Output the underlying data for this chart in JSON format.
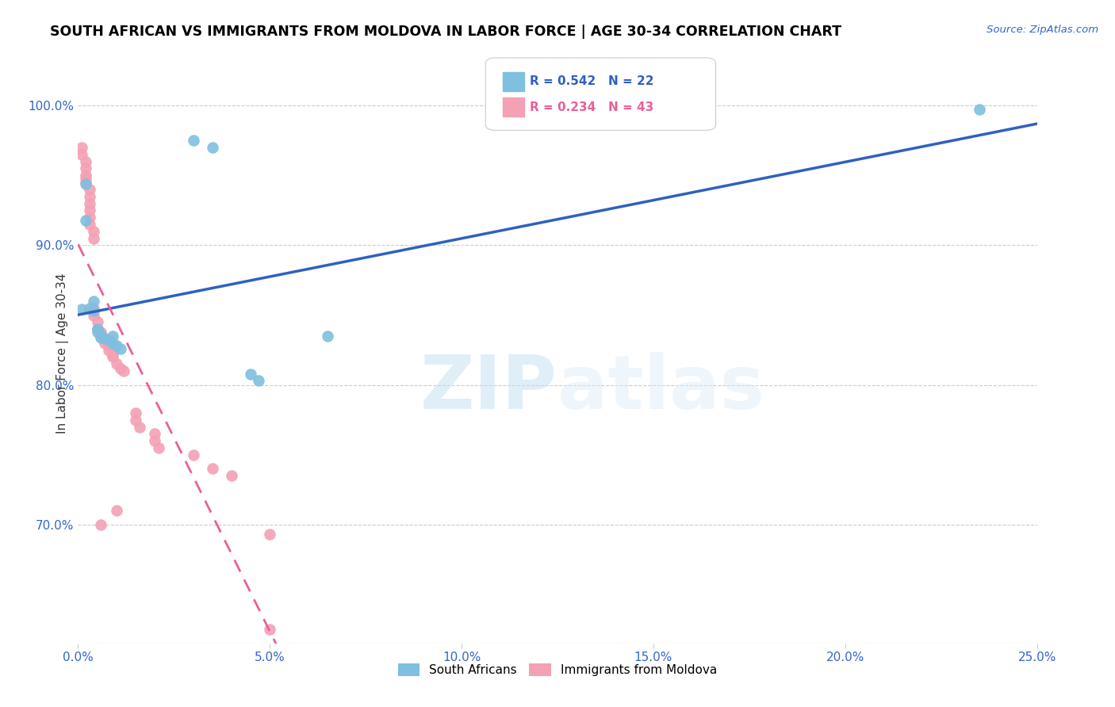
{
  "title": "SOUTH AFRICAN VS IMMIGRANTS FROM MOLDOVA IN LABOR FORCE | AGE 30-34 CORRELATION CHART",
  "source": "Source: ZipAtlas.com",
  "ylabel": "In Labor Force | Age 30-34",
  "yticks": [
    0.7,
    0.8,
    0.9,
    1.0
  ],
  "ytick_labels": [
    "70.0%",
    "80.0%",
    "90.0%",
    "100.0%"
  ],
  "xticks": [
    0.0,
    0.05,
    0.1,
    0.15,
    0.2,
    0.25
  ],
  "xtick_labels": [
    "0.0%",
    "5.0%",
    "10.0%",
    "15.0%",
    "20.0%",
    "25.0%"
  ],
  "xmin": 0.0,
  "xmax": 0.25,
  "ymin": 0.615,
  "ymax": 1.03,
  "legend_r1": "R = 0.542",
  "legend_n1": "N = 22",
  "legend_r2": "R = 0.234",
  "legend_n2": "N = 43",
  "blue_label": "South Africans",
  "pink_label": "Immigrants from Moldova",
  "blue_color": "#7fbfdf",
  "pink_color": "#f4a0b5",
  "blue_line_color": "#3060c0",
  "pink_line_color": "#e8609a",
  "watermark_zip": "ZIP",
  "watermark_atlas": "atlas",
  "blue_points": [
    [
      0.001,
      0.854
    ],
    [
      0.002,
      0.944
    ],
    [
      0.002,
      0.918
    ],
    [
      0.003,
      0.855
    ],
    [
      0.004,
      0.86
    ],
    [
      0.004,
      0.853
    ],
    [
      0.005,
      0.84
    ],
    [
      0.005,
      0.838
    ],
    [
      0.006,
      0.836
    ],
    [
      0.006,
      0.834
    ],
    [
      0.007,
      0.833
    ],
    [
      0.008,
      0.832
    ],
    [
      0.009,
      0.835
    ],
    [
      0.009,
      0.83
    ],
    [
      0.01,
      0.828
    ],
    [
      0.011,
      0.826
    ],
    [
      0.03,
      0.975
    ],
    [
      0.035,
      0.97
    ],
    [
      0.045,
      0.808
    ],
    [
      0.047,
      0.803
    ],
    [
      0.065,
      0.835
    ],
    [
      0.235,
      0.997
    ]
  ],
  "pink_points": [
    [
      0.001,
      0.97
    ],
    [
      0.001,
      0.965
    ],
    [
      0.002,
      0.96
    ],
    [
      0.002,
      0.955
    ],
    [
      0.002,
      0.95
    ],
    [
      0.002,
      0.948
    ],
    [
      0.002,
      0.945
    ],
    [
      0.003,
      0.94
    ],
    [
      0.003,
      0.935
    ],
    [
      0.003,
      0.93
    ],
    [
      0.003,
      0.925
    ],
    [
      0.003,
      0.92
    ],
    [
      0.003,
      0.915
    ],
    [
      0.004,
      0.91
    ],
    [
      0.004,
      0.905
    ],
    [
      0.004,
      0.855
    ],
    [
      0.004,
      0.85
    ],
    [
      0.005,
      0.845
    ],
    [
      0.005,
      0.84
    ],
    [
      0.006,
      0.838
    ],
    [
      0.006,
      0.835
    ],
    [
      0.007,
      0.833
    ],
    [
      0.007,
      0.83
    ],
    [
      0.008,
      0.828
    ],
    [
      0.008,
      0.825
    ],
    [
      0.009,
      0.822
    ],
    [
      0.009,
      0.82
    ],
    [
      0.01,
      0.815
    ],
    [
      0.011,
      0.812
    ],
    [
      0.012,
      0.81
    ],
    [
      0.015,
      0.78
    ],
    [
      0.015,
      0.775
    ],
    [
      0.016,
      0.77
    ],
    [
      0.02,
      0.765
    ],
    [
      0.02,
      0.76
    ],
    [
      0.021,
      0.755
    ],
    [
      0.03,
      0.75
    ],
    [
      0.035,
      0.74
    ],
    [
      0.04,
      0.735
    ],
    [
      0.05,
      0.693
    ],
    [
      0.006,
      0.7
    ],
    [
      0.01,
      0.71
    ],
    [
      0.05,
      0.625
    ]
  ]
}
